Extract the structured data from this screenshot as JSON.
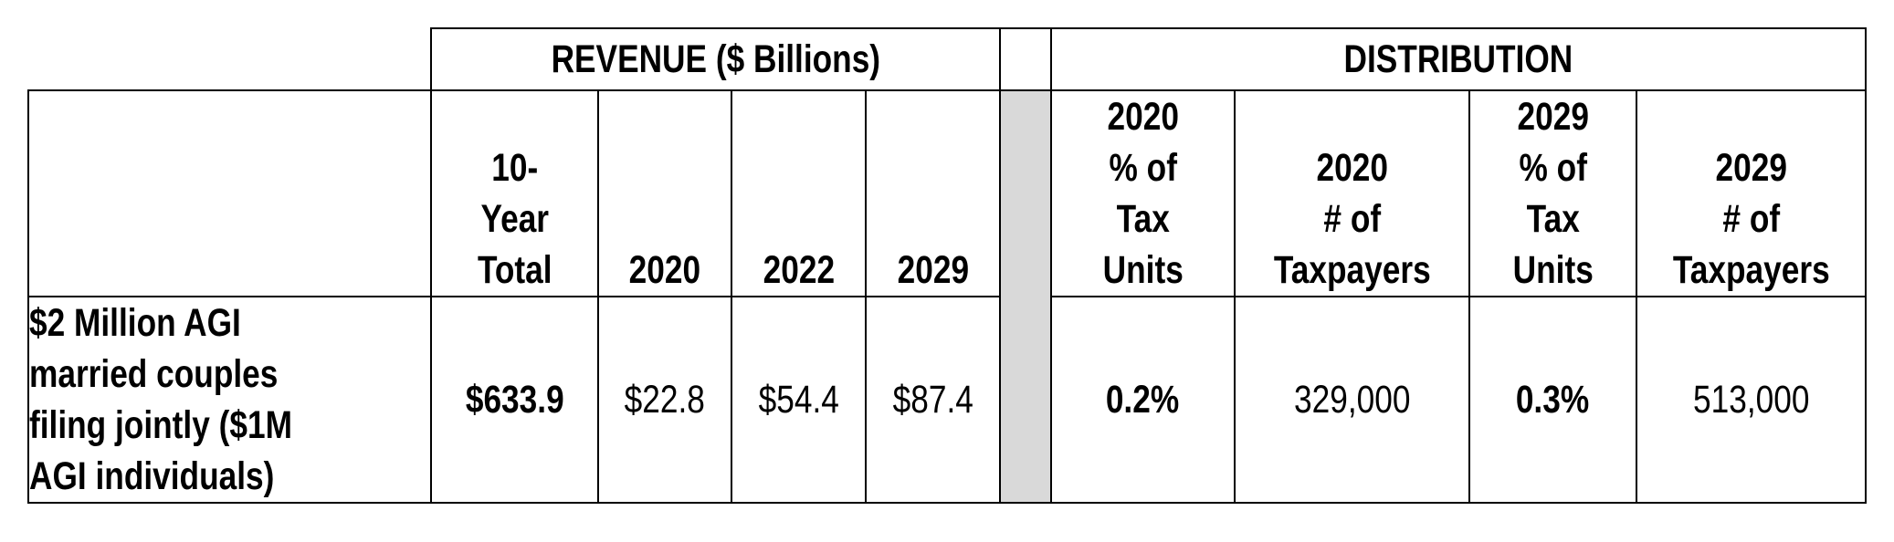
{
  "groups": {
    "revenue": "REVENUE ($ Billions)",
    "distribution": "DISTRIBUTION"
  },
  "columns": {
    "total": [
      "10-",
      "Year",
      "Total"
    ],
    "y2020": "2020",
    "y2022": "2022",
    "y2029": "2029",
    "pct2020": [
      "2020",
      "% of",
      "Tax",
      "Units"
    ],
    "num2020": [
      "2020",
      "# of",
      "Taxpayers"
    ],
    "pct2029": [
      "2029",
      "% of",
      "Tax",
      "Units"
    ],
    "num2029": [
      "2029",
      "# of",
      "Taxpayers"
    ]
  },
  "row": {
    "label": [
      "$2 Million AGI",
      "married couples",
      "filing jointly ($1M",
      "AGI individuals)"
    ],
    "total": "$633.9",
    "y2020": "$22.8",
    "y2022": "$54.4",
    "y2029": "$87.4",
    "pct2020": "0.2%",
    "num2020": "329,000",
    "pct2029": "0.3%",
    "num2029": "513,000"
  },
  "colors": {
    "separator_shade": "#d9d9d9",
    "border": "#000000"
  }
}
